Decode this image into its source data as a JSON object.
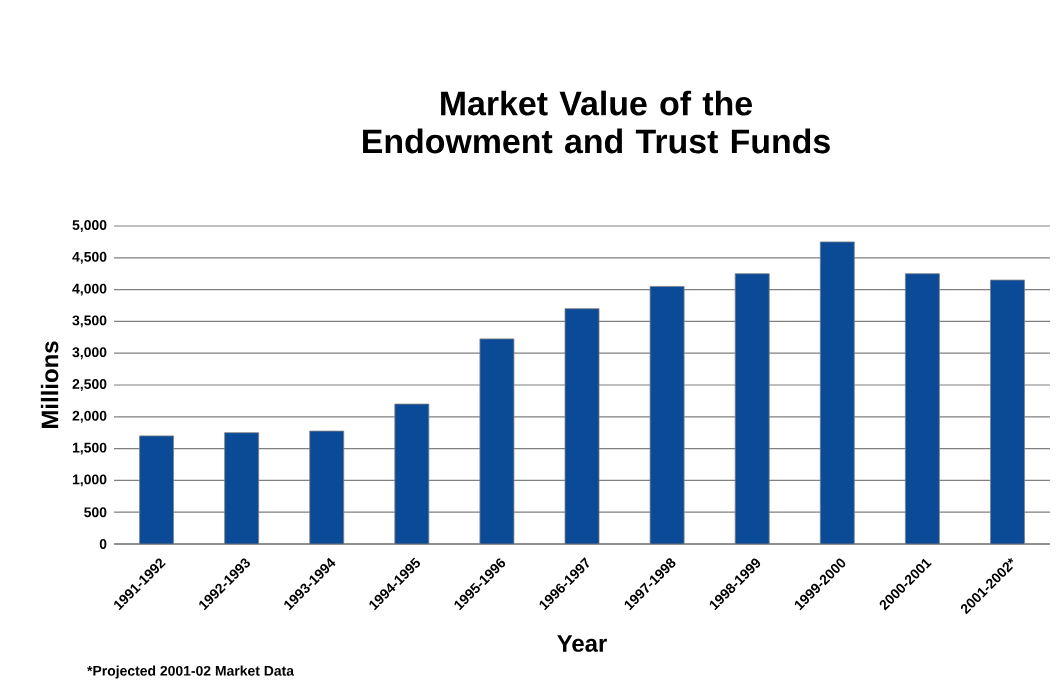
{
  "chart_data": {
    "type": "bar",
    "title": "Market Value of the Endowment and Trust Funds",
    "xlabel": "Year",
    "ylabel": "Millions",
    "categories": [
      "1991-1992",
      "1992-1993",
      "1993-1994",
      "1994-1995",
      "1995-1996",
      "1996-1997",
      "1997-1998",
      "1998-1999",
      "1999-2000",
      "2000-2001",
      "2001-2002*"
    ],
    "values": [
      1700,
      1750,
      1775,
      2200,
      3225,
      3700,
      4050,
      4250,
      4750,
      4250,
      4150
    ],
    "color": "#0a4a96",
    "ylim": [
      0,
      5000
    ],
    "yticks": [
      0,
      500,
      {
        "value": 1000,
        "label": "1,000"
      },
      {
        "value": 1500,
        "label": "1,500"
      },
      {
        "value": 2000,
        "label": "2,000"
      },
      {
        "value": 2500,
        "label": "2,500"
      },
      {
        "value": 3000,
        "label": "3,000"
      },
      {
        "value": 3500,
        "label": "3,500"
      },
      {
        "value": 4000,
        "label": "4,000"
      },
      {
        "value": 4500,
        "label": "4,500"
      },
      {
        "value": 5000,
        "label": "5,000"
      }
    ],
    "grid": "y",
    "annotations": [
      "*Projected 2001-02 Market Data"
    ]
  }
}
